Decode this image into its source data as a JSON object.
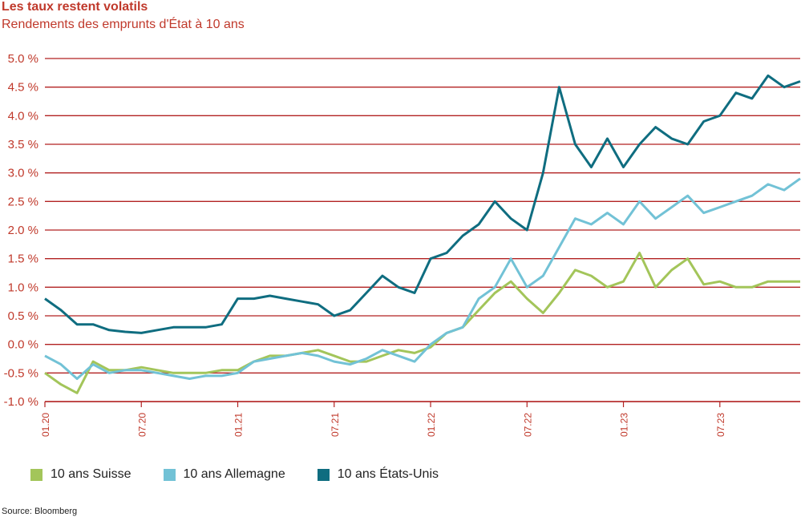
{
  "title": "Les taux restent volatils",
  "subtitle": "Rendements des emprunts d'État à 10 ans",
  "source": "Source: Bloomberg",
  "colors": {
    "grid": "#b22222",
    "axis_text": "#c0392b",
    "suisse": "#a3c55a",
    "allemagne": "#72c2d6",
    "usa": "#0f6d80"
  },
  "chart_data": {
    "type": "line",
    "ylim": [
      -1.0,
      5.0
    ],
    "yticks": [
      -1.0,
      -0.5,
      0.0,
      0.5,
      1.0,
      1.5,
      2.0,
      2.5,
      3.0,
      3.5,
      4.0,
      4.5,
      5.0
    ],
    "ytick_labels": [
      "-1.0 %",
      "-0.5 %",
      "0.0 %",
      "0.5 %",
      "1.0 %",
      "1.5 %",
      "2.0 %",
      "2.5 %",
      "3.0 %",
      "3.5 %",
      "4.0 %",
      "4.5 %",
      "5.0 %"
    ],
    "x_ticks": [
      "2020-01",
      "2020-07",
      "2021-01",
      "2021-07",
      "2022-01",
      "2022-07",
      "2023-01",
      "2023-07"
    ],
    "x_tick_labels": [
      "01.20",
      "07.20",
      "01.21",
      "07.21",
      "01.22",
      "07.22",
      "01.23",
      "07.23"
    ],
    "xlim": [
      "2020-01",
      "2023-12"
    ],
    "legend_position": "bottom",
    "series": [
      {
        "name": "10 ans Suisse",
        "color": "#a3c55a",
        "x": [
          "2020-01",
          "2020-02",
          "2020-03",
          "2020-04",
          "2020-05",
          "2020-06",
          "2020-07",
          "2020-08",
          "2020-09",
          "2020-10",
          "2020-11",
          "2020-12",
          "2021-01",
          "2021-02",
          "2021-03",
          "2021-04",
          "2021-05",
          "2021-06",
          "2021-07",
          "2021-08",
          "2021-09",
          "2021-10",
          "2021-11",
          "2021-12",
          "2022-01",
          "2022-02",
          "2022-03",
          "2022-04",
          "2022-05",
          "2022-06",
          "2022-07",
          "2022-08",
          "2022-09",
          "2022-10",
          "2022-11",
          "2022-12",
          "2023-01",
          "2023-02",
          "2023-03",
          "2023-04",
          "2023-05",
          "2023-06",
          "2023-07",
          "2023-08",
          "2023-09",
          "2023-10",
          "2023-11",
          "2023-12"
        ],
        "y": [
          -0.5,
          -0.7,
          -0.85,
          -0.3,
          -0.45,
          -0.45,
          -0.4,
          -0.45,
          -0.5,
          -0.5,
          -0.5,
          -0.45,
          -0.45,
          -0.3,
          -0.2,
          -0.2,
          -0.15,
          -0.1,
          -0.2,
          -0.3,
          -0.3,
          -0.2,
          -0.1,
          -0.15,
          -0.05,
          0.2,
          0.3,
          0.6,
          0.9,
          1.1,
          0.8,
          0.55,
          0.9,
          1.3,
          1.2,
          1.0,
          1.1,
          1.6,
          1.0,
          1.3,
          1.5,
          1.05,
          1.1,
          1.0,
          1.0,
          1.1,
          1.1,
          1.1
        ]
      },
      {
        "name": "10 ans Allemagne",
        "color": "#72c2d6",
        "x": [
          "2020-01",
          "2020-02",
          "2020-03",
          "2020-04",
          "2020-05",
          "2020-06",
          "2020-07",
          "2020-08",
          "2020-09",
          "2020-10",
          "2020-11",
          "2020-12",
          "2021-01",
          "2021-02",
          "2021-03",
          "2021-04",
          "2021-05",
          "2021-06",
          "2021-07",
          "2021-08",
          "2021-09",
          "2021-10",
          "2021-11",
          "2021-12",
          "2022-01",
          "2022-02",
          "2022-03",
          "2022-04",
          "2022-05",
          "2022-06",
          "2022-07",
          "2022-08",
          "2022-09",
          "2022-10",
          "2022-11",
          "2022-12",
          "2023-01",
          "2023-02",
          "2023-03",
          "2023-04",
          "2023-05",
          "2023-06",
          "2023-07",
          "2023-08",
          "2023-09",
          "2023-10",
          "2023-11",
          "2023-12"
        ],
        "y": [
          -0.2,
          -0.35,
          -0.6,
          -0.35,
          -0.5,
          -0.45,
          -0.45,
          -0.5,
          -0.55,
          -0.6,
          -0.55,
          -0.55,
          -0.5,
          -0.3,
          -0.25,
          -0.2,
          -0.15,
          -0.2,
          -0.3,
          -0.35,
          -0.25,
          -0.1,
          -0.2,
          -0.3,
          0.0,
          0.2,
          0.3,
          0.8,
          1.0,
          1.5,
          1.0,
          1.2,
          1.7,
          2.2,
          2.1,
          2.3,
          2.1,
          2.5,
          2.2,
          2.4,
          2.6,
          2.3,
          2.4,
          2.5,
          2.6,
          2.8,
          2.7,
          2.9
        ]
      },
      {
        "name": "10 ans États-Unis",
        "color": "#0f6d80",
        "x": [
          "2020-01",
          "2020-02",
          "2020-03",
          "2020-04",
          "2020-05",
          "2020-06",
          "2020-07",
          "2020-08",
          "2020-09",
          "2020-10",
          "2020-11",
          "2020-12",
          "2021-01",
          "2021-02",
          "2021-03",
          "2021-04",
          "2021-05",
          "2021-06",
          "2021-07",
          "2021-08",
          "2021-09",
          "2021-10",
          "2021-11",
          "2021-12",
          "2022-01",
          "2022-02",
          "2022-03",
          "2022-04",
          "2022-05",
          "2022-06",
          "2022-07",
          "2022-08",
          "2022-09",
          "2022-10",
          "2022-11",
          "2022-12",
          "2023-01",
          "2023-02",
          "2023-03",
          "2023-04",
          "2023-05",
          "2023-06",
          "2023-07",
          "2023-08",
          "2023-09",
          "2023-10",
          "2023-11",
          "2023-12"
        ],
        "y": [
          0.8,
          0.6,
          0.35,
          0.35,
          0.25,
          0.22,
          0.2,
          0.25,
          0.3,
          0.3,
          0.3,
          0.35,
          0.8,
          0.8,
          0.85,
          0.8,
          0.75,
          0.7,
          0.5,
          0.6,
          0.9,
          1.2,
          1.0,
          0.9,
          1.5,
          1.6,
          1.9,
          2.1,
          2.5,
          2.2,
          2.0,
          3.0,
          4.5,
          3.5,
          3.1,
          3.6,
          3.1,
          3.5,
          3.8,
          3.6,
          3.5,
          3.9,
          4.0,
          4.4,
          4.3,
          4.7,
          4.5,
          4.6
        ]
      }
    ]
  }
}
